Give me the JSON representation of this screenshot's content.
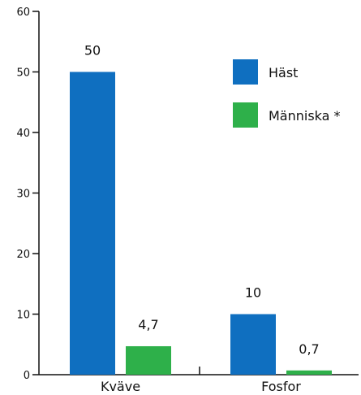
{
  "chart_data": {
    "type": "bar",
    "categories": [
      "Kväve",
      "Fosfor"
    ],
    "series": [
      {
        "name": "Häst",
        "values": [
          50,
          10
        ],
        "labels": [
          "50",
          "10"
        ],
        "color": "#0f6fc0"
      },
      {
        "name": "Människa *",
        "values": [
          4.7,
          0.7
        ],
        "labels": [
          "4,7",
          "0,7"
        ],
        "color": "#2eb04a"
      }
    ],
    "ylim": [
      0,
      60
    ],
    "yticks": [
      0,
      10,
      20,
      30,
      40,
      50,
      60
    ],
    "grid": false,
    "legend_position": "top-right",
    "title": "",
    "xlabel": "",
    "ylabel": ""
  }
}
